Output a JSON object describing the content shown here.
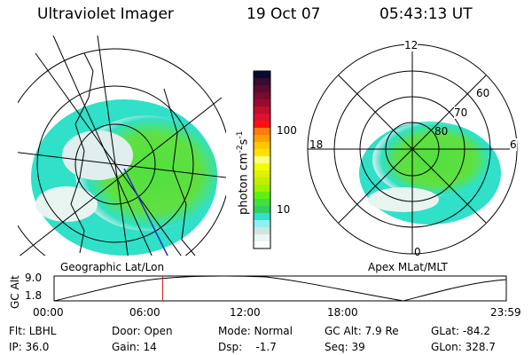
{
  "header": {
    "instrument": "Ultraviolet Imager",
    "date": "19 Oct 07",
    "time": "05:43:13 UT"
  },
  "colorbar": {
    "label": "photon cm",
    "exp1": "-2",
    "unit2": "s",
    "exp2": "-1",
    "ticks": [
      "100",
      "10"
    ],
    "colors": [
      "#0a0a30",
      "#3a0a30",
      "#5a0a30",
      "#7a0a30",
      "#9a0a30",
      "#c0102a",
      "#e01030",
      "#ff1010",
      "#ff7a10",
      "#ffa000",
      "#ffc800",
      "#ffe000",
      "#ffff80",
      "#f0ff00",
      "#e0f000",
      "#c0f000",
      "#a0f000",
      "#60f010",
      "#40e040",
      "#30d060",
      "#30e0d0",
      "#90f0f0",
      "#d0e4e4",
      "#eaf4f0",
      "#ffffff"
    ]
  },
  "left_map": {
    "label": "Geographic Lat/Lon"
  },
  "right_map": {
    "label": "Apex MLat/MLT",
    "mlt_labels": [
      "12",
      "18",
      "6",
      "0"
    ],
    "lat_labels": [
      "60",
      "70",
      "80"
    ]
  },
  "altitude_plot": {
    "ylabel": "GC Alt",
    "yticks": [
      "9.0",
      "1.8"
    ],
    "xticks": [
      "00:00",
      "06:00",
      "12:00",
      "18:00",
      "23:59"
    ],
    "current_fraction": 0.24
  },
  "status": {
    "flt": "Flt: LBHL",
    "ip": "IP: 36.0",
    "door": "Door: Open",
    "gain": "Gain: 14",
    "mode": "Mode: Normal",
    "dsp": "Dsp:    -1.7",
    "gcalt": "GC Alt: 7.9 Re",
    "seq": "Seq: 39",
    "glat": "GLat: -84.2",
    "glon": "GLon: 328.7"
  }
}
